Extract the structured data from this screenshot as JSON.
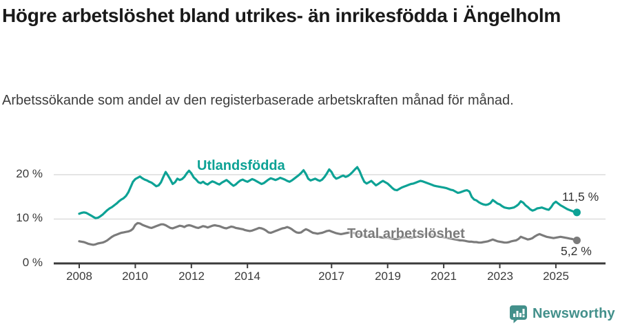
{
  "title": "Högre arbetslöshet bland utrikes- än inrikesfödda i Ängelholm",
  "subtitle": "Arbetssökande som andel av den registerbaserade arbetskraften månad för månad.",
  "colors": {
    "series_utlandsfodda": "#0da295",
    "series_total": "#7b7b7b",
    "grid": "#dcdcdc",
    "axis": "#3a3a3a",
    "value_label_text": "#333333",
    "logo_teal": "#43908b",
    "title_text": "#1a1a1a",
    "subtitle_text": "#3c3c3c"
  },
  "chart_data": {
    "type": "line",
    "title": "Högre arbetslöshet bland utrikes- än inrikesfödda i Ängelholm",
    "subtitle": "Arbetssökande som andel av den registerbaserade arbetskraften månad för månad.",
    "frequency": "monthly",
    "x_start": "2008-01",
    "x_end": "2025-10",
    "xlabel": "",
    "ylabel": "",
    "ylim": [
      0,
      23
    ],
    "grid": "horizontal",
    "legend_position": "inline-labels-on-lines",
    "y_axis": {
      "tick_values": [
        0,
        10,
        20
      ],
      "tick_labels": [
        "0 %",
        "10 %",
        "20 %"
      ]
    },
    "x_axis": {
      "tick_years": [
        2008,
        2010,
        2012,
        2014,
        2017,
        2019,
        2021,
        2023,
        2025
      ],
      "tick_labels": [
        "2008",
        "2010",
        "2012",
        "2014",
        "2017",
        "2019",
        "2021",
        "2023",
        "2025"
      ]
    },
    "series": [
      {
        "name": "Utlandsfödda",
        "color": "#0da295",
        "end_label": "11,5 %",
        "end_value": 11.5,
        "values": [
          11.2,
          11.4,
          11.5,
          11.4,
          11.1,
          10.8,
          10.5,
          10.2,
          10.3,
          10.6,
          11.0,
          11.5,
          12.0,
          12.4,
          12.7,
          13.1,
          13.5,
          14.0,
          14.4,
          14.7,
          15.2,
          16.0,
          17.2,
          18.4,
          19.0,
          19.3,
          19.6,
          19.2,
          18.9,
          18.7,
          18.4,
          18.2,
          17.8,
          17.4,
          17.6,
          18.3,
          19.5,
          20.6,
          19.8,
          18.9,
          17.9,
          18.3,
          19.1,
          18.8,
          19.0,
          19.5,
          20.3,
          20.9,
          20.3,
          19.4,
          18.9,
          18.3,
          18.1,
          18.4,
          18.0,
          17.8,
          18.2,
          18.5,
          18.3,
          18.0,
          17.8,
          18.2,
          18.5,
          18.8,
          18.4,
          17.9,
          17.5,
          17.8,
          18.3,
          18.7,
          18.9,
          18.6,
          18.4,
          18.7,
          19.0,
          18.8,
          18.5,
          18.2,
          17.9,
          18.1,
          18.5,
          18.9,
          19.2,
          19.0,
          18.8,
          19.0,
          19.3,
          19.1,
          18.9,
          18.6,
          18.4,
          18.7,
          19.1,
          19.5,
          19.9,
          20.4,
          21.0,
          20.2,
          19.1,
          18.7,
          18.9,
          19.1,
          18.8,
          18.6,
          18.9,
          19.5,
          20.3,
          21.2,
          20.6,
          19.6,
          19.1,
          19.3,
          19.6,
          19.8,
          19.5,
          19.7,
          20.1,
          20.6,
          21.2,
          21.7,
          20.8,
          19.5,
          18.4,
          18.0,
          18.3,
          18.6,
          18.1,
          17.6,
          17.9,
          18.3,
          18.6,
          18.3,
          18.0,
          17.5,
          17.0,
          16.6,
          16.5,
          16.8,
          17.1,
          17.3,
          17.5,
          17.7,
          17.9,
          18.0,
          18.2,
          18.4,
          18.6,
          18.5,
          18.3,
          18.1,
          17.9,
          17.7,
          17.5,
          17.4,
          17.3,
          17.2,
          17.1,
          17.0,
          16.8,
          16.6,
          16.5,
          16.2,
          15.9,
          16.0,
          16.2,
          16.4,
          16.5,
          16.2,
          15.0,
          14.4,
          14.2,
          13.8,
          13.5,
          13.3,
          13.2,
          13.3,
          13.6,
          14.3,
          13.9,
          13.5,
          13.3,
          12.9,
          12.6,
          12.5,
          12.4,
          12.5,
          12.6,
          12.9,
          13.3,
          14.0,
          13.7,
          13.1,
          12.7,
          12.2,
          11.9,
          12.1,
          12.4,
          12.5,
          12.6,
          12.4,
          12.2,
          12.1,
          12.7,
          13.5,
          13.9,
          13.5,
          13.1,
          12.8,
          12.5,
          12.2,
          12.0,
          11.8,
          11.6,
          11.5
        ]
      },
      {
        "name": "Total arbetslöshet",
        "color": "#7b7b7b",
        "end_label": "5,2 %",
        "end_value": 5.2,
        "values": [
          5.0,
          4.9,
          4.8,
          4.6,
          4.4,
          4.3,
          4.2,
          4.3,
          4.5,
          4.6,
          4.7,
          4.9,
          5.2,
          5.6,
          6.0,
          6.3,
          6.5,
          6.7,
          6.9,
          7.0,
          7.1,
          7.2,
          7.4,
          7.8,
          8.7,
          9.1,
          9.0,
          8.7,
          8.5,
          8.3,
          8.1,
          8.0,
          8.2,
          8.4,
          8.6,
          8.8,
          8.8,
          8.6,
          8.3,
          8.0,
          7.9,
          8.1,
          8.3,
          8.5,
          8.4,
          8.2,
          8.5,
          8.6,
          8.5,
          8.3,
          8.1,
          8.0,
          8.2,
          8.4,
          8.3,
          8.1,
          8.3,
          8.5,
          8.6,
          8.5,
          8.4,
          8.2,
          8.0,
          7.9,
          8.1,
          8.3,
          8.2,
          8.0,
          7.9,
          7.8,
          7.7,
          7.5,
          7.4,
          7.3,
          7.4,
          7.6,
          7.8,
          8.0,
          7.9,
          7.7,
          7.4,
          7.0,
          6.9,
          7.1,
          7.3,
          7.5,
          7.7,
          7.9,
          8.0,
          8.2,
          8.0,
          7.7,
          7.3,
          7.0,
          6.9,
          7.0,
          7.4,
          7.7,
          7.5,
          7.2,
          6.9,
          6.8,
          6.7,
          6.8,
          6.9,
          7.1,
          7.3,
          7.4,
          7.2,
          7.0,
          6.8,
          6.7,
          6.6,
          6.7,
          6.8,
          6.9,
          7.0,
          6.9,
          6.8,
          6.7,
          6.6,
          6.4,
          6.2,
          6.1,
          6.0,
          6.1,
          6.2,
          6.1,
          6.0,
          5.9,
          5.8,
          5.8,
          5.8,
          5.7,
          5.6,
          5.5,
          5.5,
          5.6,
          5.8,
          5.9,
          5.9,
          5.8,
          5.8,
          5.9,
          6.0,
          6.1,
          6.3,
          6.5,
          6.6,
          6.7,
          6.6,
          6.5,
          6.4,
          6.2,
          6.1,
          6.0,
          5.9,
          5.8,
          5.7,
          5.6,
          5.5,
          5.4,
          5.3,
          5.2,
          5.2,
          5.1,
          5.0,
          4.9,
          4.9,
          4.8,
          4.8,
          4.7,
          4.7,
          4.8,
          4.9,
          5.0,
          5.2,
          5.4,
          5.2,
          5.0,
          4.9,
          4.8,
          4.7,
          4.7,
          4.8,
          5.0,
          5.1,
          5.2,
          5.5,
          6.0,
          5.8,
          5.6,
          5.4,
          5.5,
          5.7,
          6.1,
          6.4,
          6.6,
          6.4,
          6.2,
          6.0,
          5.9,
          5.8,
          5.7,
          5.8,
          5.9,
          6.0,
          5.9,
          5.8,
          5.7,
          5.6,
          5.5,
          5.3,
          5.2
        ]
      }
    ]
  },
  "branding": {
    "logo_text": "Newsworthy",
    "logo_icon": "bar-chart-speech-bubble-icon"
  }
}
